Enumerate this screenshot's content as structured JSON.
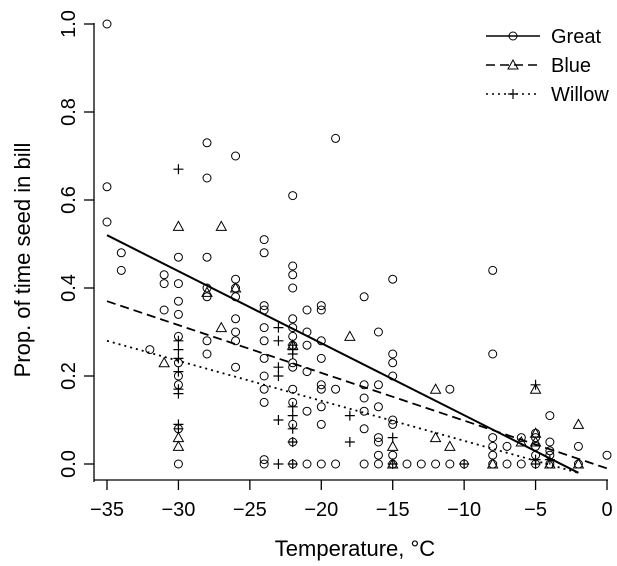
{
  "chart_data": {
    "type": "scatter",
    "title": "",
    "xlabel": "Temperature, °C",
    "ylabel": "Prop. of time seed in bill",
    "xlim": [
      -35,
      0
    ],
    "ylim": [
      0,
      1
    ],
    "x_ticks": [
      "−35",
      "−30",
      "−25",
      "−20",
      "−15",
      "−10",
      "−5",
      "0"
    ],
    "y_ticks": [
      "0.0",
      "0.2",
      "0.4",
      "0.6",
      "0.8",
      "1.0"
    ],
    "grid": false,
    "legend_position": "top-right",
    "series": [
      {
        "name": "Great",
        "marker": "circle",
        "line_style": "solid",
        "trend": {
          "x": [
            -35,
            -2
          ],
          "y": [
            0.52,
            -0.02
          ]
        },
        "points": [
          [
            -35,
            1.0
          ],
          [
            -35,
            0.63
          ],
          [
            -35,
            0.55
          ],
          [
            -34,
            0.48
          ],
          [
            -34,
            0.44
          ],
          [
            -32,
            0.26
          ],
          [
            -31,
            0.43
          ],
          [
            -31,
            0.41
          ],
          [
            -31,
            0.35
          ],
          [
            -30,
            0.47
          ],
          [
            -30,
            0.41
          ],
          [
            -30,
            0.37
          ],
          [
            -30,
            0.34
          ],
          [
            -30,
            0.29
          ],
          [
            -30,
            0.23
          ],
          [
            -30,
            0.2
          ],
          [
            -30,
            0.18
          ],
          [
            -30,
            0.08
          ],
          [
            -30,
            0.0
          ],
          [
            -28,
            0.73
          ],
          [
            -28,
            0.65
          ],
          [
            -28,
            0.47
          ],
          [
            -28,
            0.4
          ],
          [
            -28,
            0.38
          ],
          [
            -28,
            0.28
          ],
          [
            -28,
            0.25
          ],
          [
            -26,
            0.7
          ],
          [
            -26,
            0.42
          ],
          [
            -26,
            0.4
          ],
          [
            -26,
            0.38
          ],
          [
            -26,
            0.33
          ],
          [
            -26,
            0.3
          ],
          [
            -26,
            0.28
          ],
          [
            -26,
            0.22
          ],
          [
            -24,
            0.51
          ],
          [
            -24,
            0.48
          ],
          [
            -24,
            0.36
          ],
          [
            -24,
            0.35
          ],
          [
            -24,
            0.31
          ],
          [
            -24,
            0.28
          ],
          [
            -24,
            0.24
          ],
          [
            -24,
            0.2
          ],
          [
            -24,
            0.17
          ],
          [
            -24,
            0.14
          ],
          [
            -24,
            0.01
          ],
          [
            -24,
            0.0
          ],
          [
            -22,
            0.61
          ],
          [
            -22,
            0.45
          ],
          [
            -22,
            0.43
          ],
          [
            -22,
            0.4
          ],
          [
            -22,
            0.33
          ],
          [
            -22,
            0.31
          ],
          [
            -22,
            0.29
          ],
          [
            -22,
            0.27
          ],
          [
            -22,
            0.23
          ],
          [
            -22,
            0.22
          ],
          [
            -22,
            0.17
          ],
          [
            -22,
            0.14
          ],
          [
            -22,
            0.09
          ],
          [
            -22,
            0.05
          ],
          [
            -22,
            0.0
          ],
          [
            -21,
            0.35
          ],
          [
            -21,
            0.3
          ],
          [
            -21,
            0.27
          ],
          [
            -21,
            0.21
          ],
          [
            -21,
            0.12
          ],
          [
            -21,
            0.0
          ],
          [
            -20,
            0.36
          ],
          [
            -20,
            0.35
          ],
          [
            -20,
            0.28
          ],
          [
            -20,
            0.24
          ],
          [
            -20,
            0.18
          ],
          [
            -20,
            0.17
          ],
          [
            -20,
            0.13
          ],
          [
            -20,
            0.09
          ],
          [
            -20,
            0.0
          ],
          [
            -19,
            0.74
          ],
          [
            -19,
            0.17
          ],
          [
            -19,
            0.0
          ],
          [
            -17,
            0.38
          ],
          [
            -17,
            0.18
          ],
          [
            -17,
            0.15
          ],
          [
            -17,
            0.12
          ],
          [
            -17,
            0.08
          ],
          [
            -17,
            0.0
          ],
          [
            -16,
            0.3
          ],
          [
            -16,
            0.18
          ],
          [
            -16,
            0.13
          ],
          [
            -16,
            0.06
          ],
          [
            -16,
            0.05
          ],
          [
            -16,
            0.02
          ],
          [
            -16,
            0.0
          ],
          [
            -15,
            0.42
          ],
          [
            -15,
            0.25
          ],
          [
            -15,
            0.23
          ],
          [
            -15,
            0.2
          ],
          [
            -15,
            0.1
          ],
          [
            -15,
            0.09
          ],
          [
            -15,
            0.02
          ],
          [
            -15,
            0.0
          ],
          [
            -14,
            0.0
          ],
          [
            -13,
            0.0
          ],
          [
            -12,
            0.0
          ],
          [
            -11,
            0.17
          ],
          [
            -11,
            0.0
          ],
          [
            -10,
            0.0
          ],
          [
            -8,
            0.44
          ],
          [
            -8,
            0.25
          ],
          [
            -8,
            0.06
          ],
          [
            -8,
            0.04
          ],
          [
            -8,
            0.02
          ],
          [
            -8,
            0.0
          ],
          [
            -7,
            0.04
          ],
          [
            -7,
            0.0
          ],
          [
            -6,
            0.06
          ],
          [
            -6,
            0.0
          ],
          [
            -5,
            0.07
          ],
          [
            -5,
            0.06
          ],
          [
            -5,
            0.04
          ],
          [
            -5,
            0.02
          ],
          [
            -5,
            0.0
          ],
          [
            -4,
            0.11
          ],
          [
            -4,
            0.05
          ],
          [
            -4,
            0.03
          ],
          [
            -4,
            0.02
          ],
          [
            -4,
            0.0
          ],
          [
            -2,
            0.04
          ],
          [
            -2,
            0.0
          ],
          [
            0,
            0.02
          ]
        ]
      },
      {
        "name": "Blue",
        "marker": "triangle",
        "line_style": "dashed",
        "trend": {
          "x": [
            -35,
            0
          ],
          "y": [
            0.37,
            -0.01
          ]
        },
        "points": [
          [
            -31,
            0.23
          ],
          [
            -30,
            0.54
          ],
          [
            -30,
            0.06
          ],
          [
            -30,
            0.04
          ],
          [
            -28,
            0.39
          ],
          [
            -27,
            0.54
          ],
          [
            -27,
            0.31
          ],
          [
            -26,
            0.4
          ],
          [
            -22,
            0.27
          ],
          [
            -18,
            0.29
          ],
          [
            -15,
            0.04
          ],
          [
            -15,
            0.0
          ],
          [
            -12,
            0.17
          ],
          [
            -12,
            0.06
          ],
          [
            -11,
            0.04
          ],
          [
            -8,
            0.0
          ],
          [
            -6,
            0.05
          ],
          [
            -5,
            0.17
          ],
          [
            -5,
            0.07
          ],
          [
            -5,
            0.05
          ],
          [
            -4,
            0.0
          ],
          [
            -2,
            0.09
          ],
          [
            -2,
            0.0
          ]
        ]
      },
      {
        "name": "Willow",
        "marker": "plus",
        "line_style": "dotted",
        "trend": {
          "x": [
            -35,
            -2
          ],
          "y": [
            0.28,
            -0.02
          ]
        },
        "points": [
          [
            -30,
            0.67
          ],
          [
            -30,
            0.28
          ],
          [
            -30,
            0.26
          ],
          [
            -30,
            0.24
          ],
          [
            -30,
            0.21
          ],
          [
            -30,
            0.17
          ],
          [
            -30,
            0.16
          ],
          [
            -30,
            0.09
          ],
          [
            -30,
            0.08
          ],
          [
            -23,
            0.31
          ],
          [
            -23,
            0.28
          ],
          [
            -23,
            0.22
          ],
          [
            -23,
            0.2
          ],
          [
            -23,
            0.1
          ],
          [
            -23,
            0.0
          ],
          [
            -22,
            0.27
          ],
          [
            -22,
            0.26
          ],
          [
            -22,
            0.25
          ],
          [
            -22,
            0.13
          ],
          [
            -22,
            0.11
          ],
          [
            -22,
            0.08
          ],
          [
            -22,
            0.05
          ],
          [
            -22,
            0.0
          ],
          [
            -18,
            0.11
          ],
          [
            -18,
            0.05
          ],
          [
            -15,
            0.06
          ],
          [
            -15,
            0.0
          ],
          [
            -10,
            0.0
          ],
          [
            -5,
            0.18
          ],
          [
            -5,
            0.01
          ],
          [
            -5,
            0.0
          ],
          [
            -4,
            0.01
          ]
        ]
      }
    ]
  }
}
